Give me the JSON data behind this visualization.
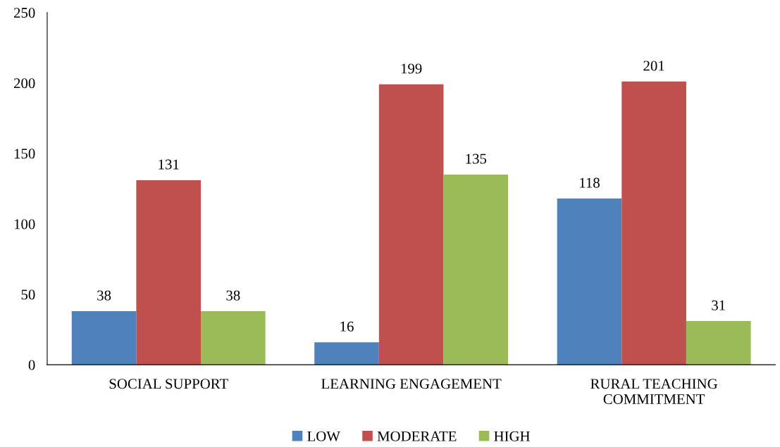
{
  "chart_data": {
    "type": "bar",
    "categories": [
      "SOCIAL SUPPORT",
      "LEARNING ENGAGEMENT",
      "RURAL TEACHING COMMITMENT"
    ],
    "series": [
      {
        "name": "LOW",
        "color": "#4f81bd",
        "values": [
          38,
          16,
          118
        ]
      },
      {
        "name": "MODERATE",
        "color": "#c0504d",
        "values": [
          131,
          199,
          201
        ]
      },
      {
        "name": "HIGH",
        "color": "#9bbb59",
        "values": [
          38,
          135,
          31
        ]
      }
    ],
    "ylim": [
      0,
      250
    ],
    "yticks": [
      0,
      50,
      100,
      150,
      200,
      250
    ],
    "data_labels": true,
    "grid": false,
    "legend": "bottom"
  }
}
